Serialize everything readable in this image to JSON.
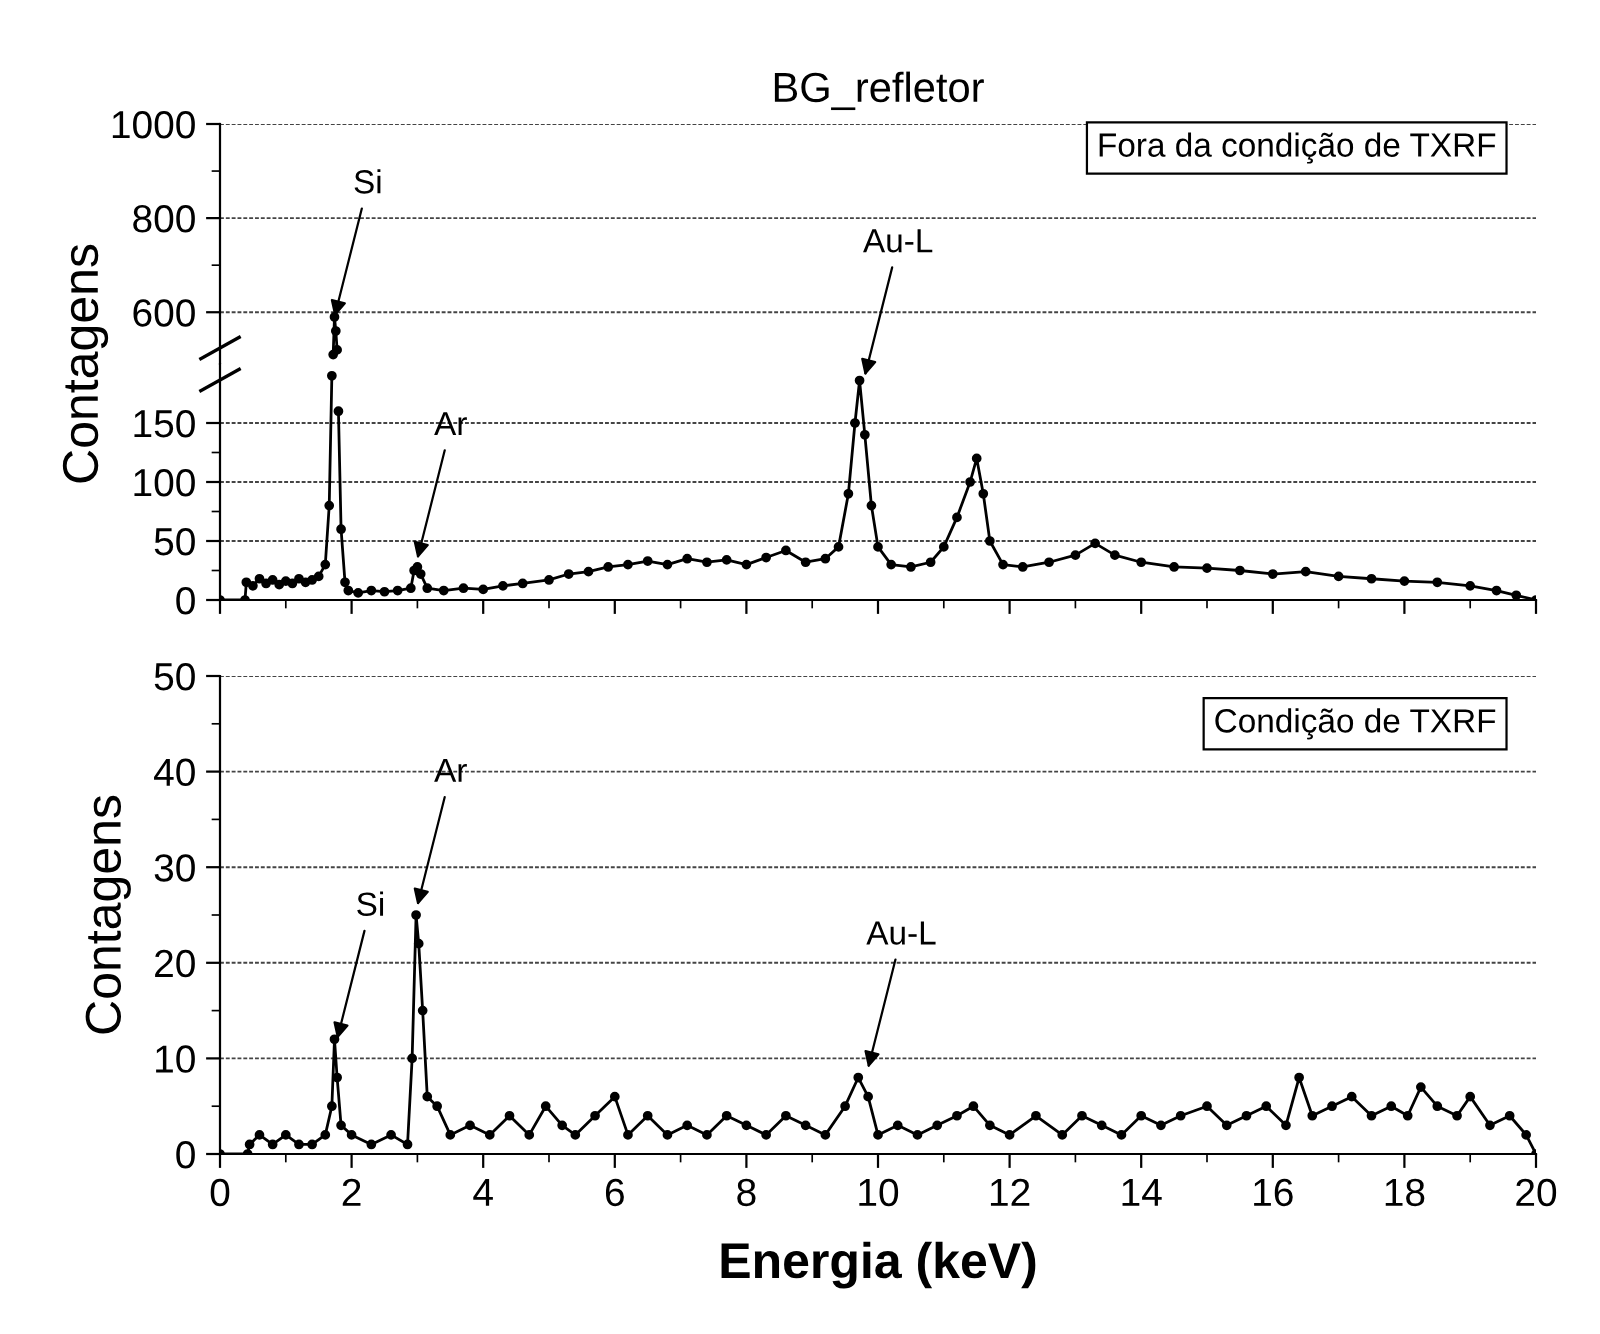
{
  "chart_data": [
    {
      "type": "line",
      "title": "BG_refletor",
      "xlim": [
        0,
        20
      ],
      "ylim": [
        490,
        1000
      ],
      "yticks": [
        600,
        800,
        1000
      ],
      "tick_labels": "y",
      "grid": "y",
      "marker": "circle",
      "line_style": "solid",
      "series": [
        {
          "color": "#000000",
          "x": [
            1.72,
            1.74,
            1.76,
            1.78
          ],
          "values": [
            510,
            590,
            560,
            520
          ]
        }
      ],
      "annotations": [
        "Fora da condição de TXRF",
        {
          "text": "Si",
          "x": 1.74,
          "y": 590
        }
      ]
    },
    {
      "type": "line",
      "ylabel": "Contagens",
      "xlim": [
        0,
        20
      ],
      "xticks": [
        {
          "value": 0,
          "label": null
        },
        {
          "value": 2,
          "label": null
        },
        {
          "value": 4,
          "label": null
        },
        {
          "value": 6,
          "label": null
        },
        {
          "value": 8,
          "label": null
        },
        {
          "value": 10,
          "label": null
        },
        {
          "value": 12,
          "label": null
        },
        {
          "value": 14,
          "label": null
        },
        {
          "value": 16,
          "label": null
        },
        {
          "value": 18,
          "label": null
        },
        {
          "value": 20,
          "label": null
        }
      ],
      "ylim": [
        0,
        200
      ],
      "yticks": [
        0,
        50,
        100,
        150
      ],
      "tick_labels": "y",
      "grid": "y",
      "marker": "circle",
      "line_style": "solid",
      "series": [
        {
          "color": "#000000",
          "x": [
            0.0,
            0.38,
            0.4,
            0.5,
            0.6,
            0.7,
            0.8,
            0.9,
            1.0,
            1.1,
            1.2,
            1.3,
            1.4,
            1.5,
            1.6,
            1.66,
            1.7,
            1.72,
            1.74,
            1.76,
            1.78,
            1.8,
            1.84,
            1.9,
            1.95,
            2.1,
            2.3,
            2.5,
            2.7,
            2.9,
            2.95,
            3.0,
            3.05,
            3.15,
            3.4,
            3.7,
            4.0,
            4.3,
            4.6,
            5.0,
            5.3,
            5.6,
            5.9,
            6.2,
            6.5,
            6.8,
            7.1,
            7.4,
            7.7,
            8.0,
            8.3,
            8.6,
            8.9,
            9.2,
            9.4,
            9.55,
            9.65,
            9.72,
            9.8,
            9.9,
            10.0,
            10.2,
            10.5,
            10.8,
            11.0,
            11.2,
            11.4,
            11.5,
            11.6,
            11.7,
            11.9,
            12.2,
            12.6,
            13.0,
            13.3,
            13.6,
            14.0,
            14.5,
            15.0,
            15.5,
            16.0,
            16.5,
            17.0,
            17.5,
            18.0,
            18.5,
            19.0,
            19.4,
            19.7,
            20.0
          ],
          "values": [
            0,
            0,
            15,
            12,
            18,
            14,
            17,
            13,
            16,
            14,
            18,
            15,
            17,
            20,
            30,
            80,
            190,
            null,
            null,
            null,
            null,
            160,
            60,
            15,
            8,
            6,
            8,
            7,
            8,
            10,
            25,
            28,
            22,
            10,
            8,
            10,
            9,
            12,
            14,
            17,
            22,
            24,
            28,
            30,
            33,
            30,
            35,
            32,
            34,
            30,
            36,
            42,
            32,
            35,
            45,
            90,
            150,
            186,
            140,
            80,
            45,
            30,
            28,
            32,
            45,
            70,
            100,
            120,
            90,
            50,
            30,
            28,
            32,
            38,
            48,
            38,
            32,
            28,
            27,
            25,
            22,
            24,
            20,
            18,
            16,
            15,
            12,
            8,
            4,
            0
          ]
        }
      ],
      "annotations": [
        {
          "text": "Ar",
          "x": 3.0,
          "y": 35
        },
        {
          "text": "Au-L",
          "x": 9.8,
          "y": 190
        }
      ]
    },
    {
      "type": "line",
      "xlabel": "Energia (keV)",
      "ylabel": "Contagens",
      "xlim": [
        0,
        20
      ],
      "xticks": [
        0,
        2,
        4,
        6,
        8,
        10,
        12,
        14,
        16,
        18,
        20
      ],
      "ylim": [
        0,
        50
      ],
      "yticks": [
        0,
        10,
        20,
        30,
        40,
        50
      ],
      "grid": "y",
      "marker": "circle",
      "line_style": "solid",
      "series": [
        {
          "color": "#000000",
          "x": [
            0.0,
            0.42,
            0.45,
            0.6,
            0.8,
            1.0,
            1.2,
            1.4,
            1.6,
            1.7,
            1.74,
            1.78,
            1.84,
            2.0,
            2.3,
            2.6,
            2.85,
            2.92,
            2.98,
            3.02,
            3.08,
            3.15,
            3.3,
            3.5,
            3.8,
            4.1,
            4.4,
            4.7,
            4.95,
            5.2,
            5.4,
            5.7,
            6.0,
            6.2,
            6.5,
            6.8,
            7.1,
            7.4,
            7.7,
            8.0,
            8.3,
            8.6,
            8.9,
            9.2,
            9.5,
            9.7,
            9.85,
            10.0,
            10.3,
            10.6,
            10.9,
            11.2,
            11.45,
            11.7,
            12.0,
            12.4,
            12.8,
            13.1,
            13.4,
            13.7,
            14.0,
            14.3,
            14.6,
            15.0,
            15.3,
            15.6,
            15.9,
            16.2,
            16.4,
            16.6,
            16.9,
            17.2,
            17.5,
            17.8,
            18.05,
            18.25,
            18.5,
            18.8,
            19.0,
            19.3,
            19.6,
            19.85,
            20.0
          ],
          "values": [
            0,
            0,
            1,
            2,
            1,
            2,
            1,
            1,
            2,
            5,
            12,
            8,
            3,
            2,
            1,
            2,
            1,
            10,
            25,
            22,
            15,
            6,
            5,
            2,
            3,
            2,
            4,
            2,
            5,
            3,
            2,
            4,
            6,
            2,
            4,
            2,
            3,
            2,
            4,
            3,
            2,
            4,
            3,
            2,
            5,
            8,
            6,
            2,
            3,
            2,
            3,
            4,
            5,
            3,
            2,
            4,
            2,
            4,
            3,
            2,
            4,
            3,
            4,
            5,
            3,
            4,
            5,
            3,
            8,
            4,
            5,
            6,
            4,
            5,
            4,
            7,
            5,
            4,
            6,
            3,
            4,
            2,
            0
          ]
        }
      ],
      "annotations": [
        "Condição de TXRF",
        {
          "text": "Si",
          "x": 1.78,
          "y": 12
        },
        {
          "text": "Ar",
          "x": 3.0,
          "y": 26
        },
        {
          "text": "Au-L",
          "x": 9.85,
          "y": 9
        }
      ]
    }
  ]
}
